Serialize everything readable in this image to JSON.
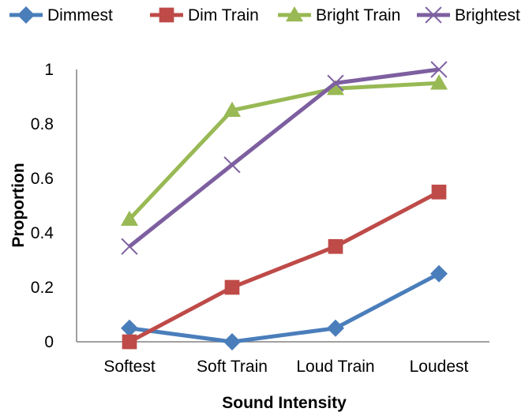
{
  "chart_data": {
    "type": "line",
    "categories": [
      "Softest",
      "Soft Train",
      "Loud Train",
      "Loudest"
    ],
    "series": [
      {
        "name": "Dimmest",
        "values": [
          0.05,
          0.0,
          0.05,
          0.25
        ],
        "color": "#4A7EBB",
        "marker": "diamond"
      },
      {
        "name": "Dim Train",
        "values": [
          0.0,
          0.2,
          0.35,
          0.55
        ],
        "color": "#BE4B48",
        "marker": "square"
      },
      {
        "name": "Bright Train",
        "values": [
          0.45,
          0.85,
          0.93,
          0.95
        ],
        "color": "#98B954",
        "marker": "triangle"
      },
      {
        "name": "Brightest",
        "values": [
          0.35,
          0.65,
          0.95,
          1.0
        ],
        "color": "#7D5FA0",
        "marker": "x"
      }
    ],
    "xlabel": "Sound Intensity",
    "ylabel": "Proportion",
    "ylim": [
      0,
      1
    ],
    "yticks": [
      "0",
      "0.2",
      "0.4",
      "0.6",
      "0.8",
      "1"
    ],
    "ytick_values": [
      0,
      0.2,
      0.4,
      0.6,
      0.8,
      1
    ],
    "grid": false,
    "legend_position": "top"
  }
}
